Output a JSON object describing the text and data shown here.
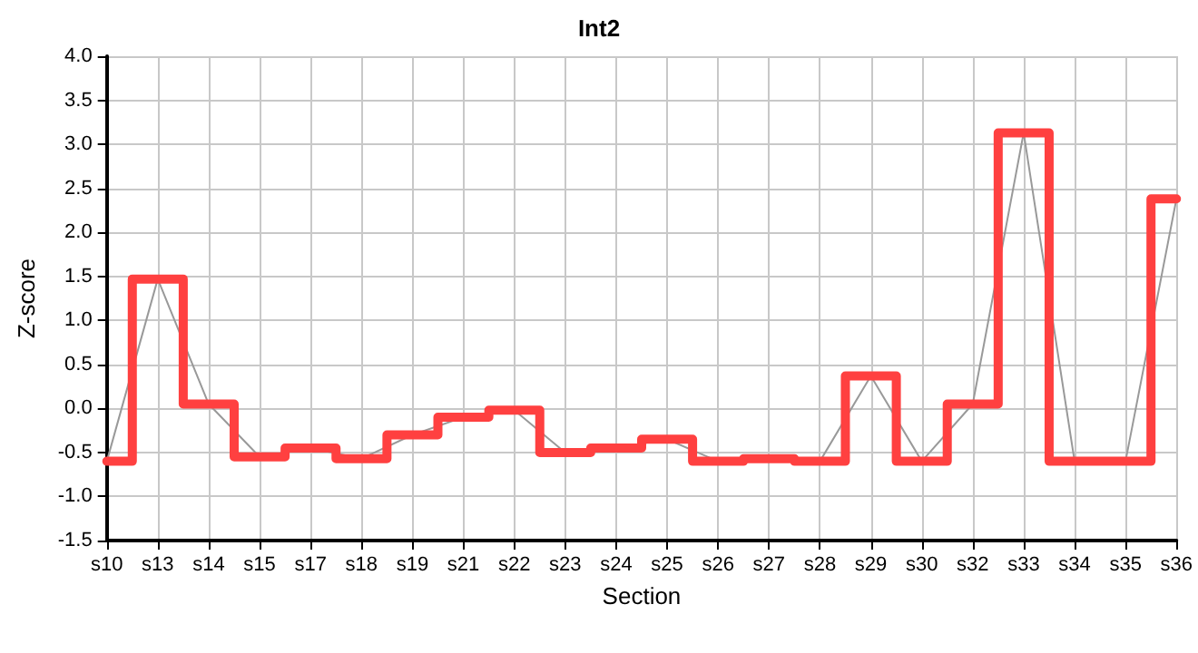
{
  "chart_data": {
    "type": "step",
    "title": "Int2",
    "xlabel": "Section",
    "ylabel": "Z-score",
    "categories": [
      "s10",
      "s13",
      "s14",
      "s15",
      "s17",
      "s18",
      "s19",
      "s21",
      "s22",
      "s23",
      "s24",
      "s25",
      "s26",
      "s27",
      "s28",
      "s29",
      "s30",
      "s32",
      "s33",
      "s34",
      "s35",
      "s36"
    ],
    "series": [
      {
        "type": "line",
        "color": "#999999",
        "values": [
          -0.6,
          1.47,
          0.05,
          -0.55,
          -0.45,
          -0.57,
          -0.3,
          -0.1,
          -0.02,
          -0.5,
          -0.45,
          -0.35,
          -0.6,
          -0.57,
          -0.6,
          0.37,
          -0.6,
          0.05,
          3.13,
          -0.6,
          -0.6,
          2.38
        ]
      },
      {
        "color": "#ff4040",
        "values": [
          -0.6,
          1.47,
          0.05,
          -0.55,
          -0.45,
          -0.57,
          -0.3,
          -0.1,
          -0.02,
          -0.5,
          -0.45,
          -0.35,
          -0.6,
          -0.57,
          -0.6,
          0.37,
          -0.6,
          0.05,
          3.13,
          -0.6,
          -0.6,
          2.38
        ]
      }
    ],
    "ylim": [
      -1.5,
      4.0
    ],
    "yticks": [
      -1.5,
      {
        "value": -1,
        "label": "-1.0"
      },
      -0.5,
      {
        "value": 0,
        "label": "0.0"
      },
      0.5,
      {
        "value": 1,
        "label": "1.0"
      },
      1.5,
      {
        "value": 2,
        "label": "2.0"
      },
      2.5,
      {
        "value": 3,
        "label": "3.0"
      },
      3.5,
      {
        "value": 4,
        "label": "4.0"
      }
    ],
    "grid": true,
    "marker": "none"
  }
}
